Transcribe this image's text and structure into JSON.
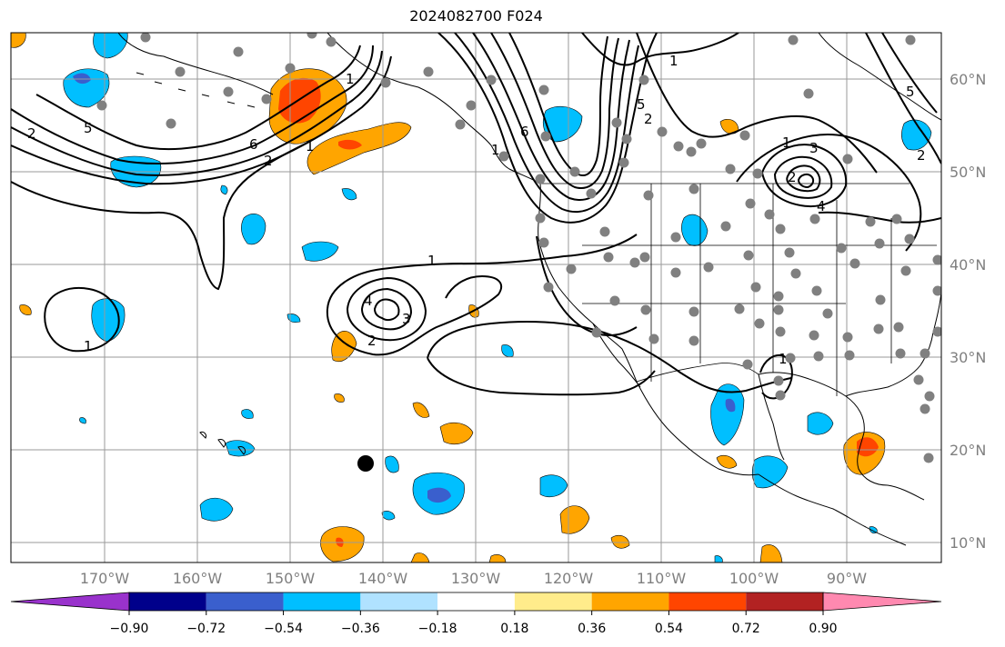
{
  "title": "2024082700 F024",
  "map": {
    "lon_labels": [
      "170°W",
      "160°W",
      "150°W",
      "140°W",
      "130°W",
      "120°W",
      "110°W",
      "100°W",
      "90°W"
    ],
    "lat_labels": [
      "60°N",
      "50°N",
      "40°N",
      "30°N",
      "20°N",
      "10°N"
    ],
    "lon_values": [
      -170,
      -160,
      -150,
      -140,
      -130,
      -120,
      -110,
      -100,
      -90
    ],
    "lat_values": [
      60,
      50,
      40,
      30,
      20,
      10
    ],
    "extent": {
      "lon": [
        -180,
        -80
      ],
      "lat": [
        8,
        65
      ]
    },
    "contour_labels": [
      {
        "text": "5"
      },
      {
        "text": "2"
      },
      {
        "text": "6"
      },
      {
        "text": "2"
      },
      {
        "text": "1"
      },
      {
        "text": "1"
      },
      {
        "text": "1"
      },
      {
        "text": "6"
      },
      {
        "text": "2"
      },
      {
        "text": "5"
      },
      {
        "text": "1"
      },
      {
        "text": "1"
      },
      {
        "text": "3"
      },
      {
        "text": "2"
      },
      {
        "text": "4"
      },
      {
        "text": "5"
      },
      {
        "text": "2"
      },
      {
        "text": "1"
      },
      {
        "text": "1"
      },
      {
        "text": "4"
      },
      {
        "text": "3"
      },
      {
        "text": "2"
      },
      {
        "text": "1"
      }
    ]
  },
  "colorbar": {
    "tick_labels": [
      "−0.90",
      "−0.72",
      "−0.54",
      "−0.36",
      "−0.18",
      "0.18",
      "0.36",
      "0.54",
      "0.72",
      "0.90"
    ],
    "colors": [
      "#9932cc",
      "#00008b",
      "#3a5fcd",
      "#00bfff",
      "#b0e2ff",
      "#ffffff",
      "#ffec8b",
      "#ffa500",
      "#ff4500",
      "#b22222",
      "#ff89b0"
    ]
  }
}
